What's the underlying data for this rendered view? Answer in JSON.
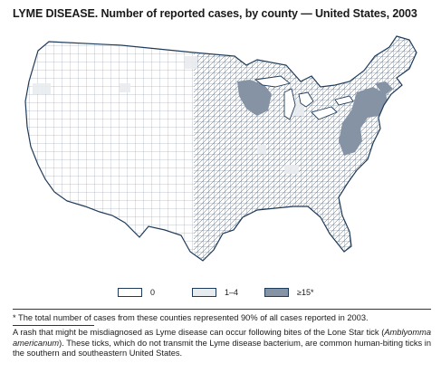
{
  "title": "LYME DISEASE. Number of reported cases, by county — United States, 2003",
  "legend": [
    {
      "label": "0",
      "color": "#ffffff"
    },
    {
      "label": "1–4",
      "color": "#e9ecef"
    },
    {
      "label": "≥15*",
      "color": "#8593a5"
    }
  ],
  "colors": {
    "border": "#1f3b5a",
    "background": "#ffffff"
  },
  "footnote": "* The total number of cases from these counties represented 90% of all cases reported in 2003.",
  "note_before": "A rash that might be misdiagnosed as Lyme disease can occur following bites of the Lone Star tick (",
  "note_italic": "Amblyomma americanum",
  "note_after": "). These ticks, which do not transmit the Lyme disease bacterium, are common human-biting ticks in the southern and southeastern United States."
}
